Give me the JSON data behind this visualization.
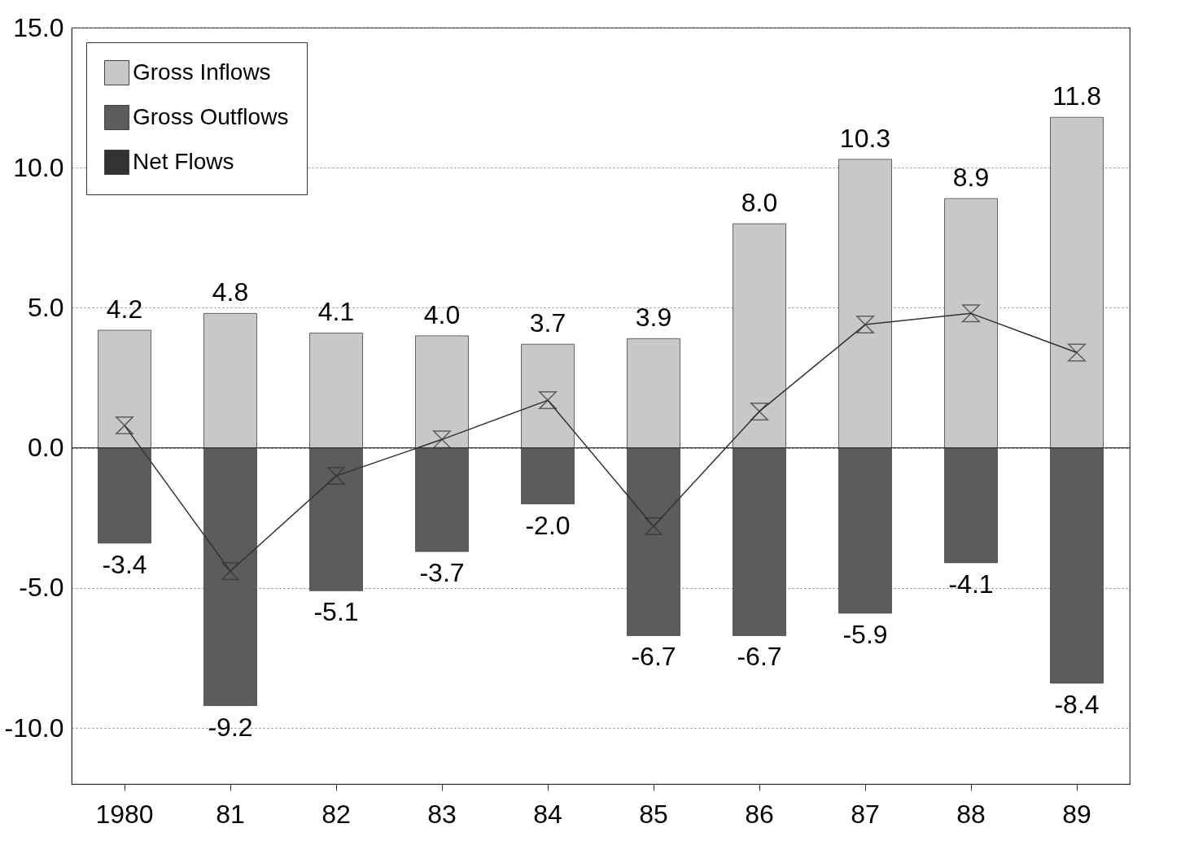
{
  "chart_data": {
    "type": "bar",
    "stacked": true,
    "categories": [
      "1980",
      "81",
      "82",
      "83",
      "84",
      "85",
      "86",
      "87",
      "88",
      "89"
    ],
    "series": [
      {
        "name": "Gross Inflows",
        "color": "#c8c8c8",
        "values": [
          4.2,
          4.8,
          4.1,
          4.0,
          3.7,
          3.9,
          8.0,
          10.3,
          8.9,
          11.8
        ],
        "value_labels": [
          "4.2",
          "4.8",
          "4.1",
          "4.0",
          "3.7",
          "3.9",
          "8.0",
          "10.3",
          "8.9",
          "11.8"
        ]
      },
      {
        "name": "Gross Outflows",
        "color": "#5c5c5c",
        "values": [
          -3.4,
          -9.2,
          -5.1,
          -3.7,
          -2.0,
          -6.7,
          -6.7,
          -5.9,
          -4.1,
          -8.4
        ],
        "value_labels": [
          "-3.4",
          "-9.2",
          "-5.1",
          "-3.7",
          "-2.0",
          "-6.7",
          "-6.7",
          "-5.9",
          "-4.1",
          "-8.4"
        ]
      },
      {
        "name": "Net Flows",
        "type": "line",
        "color": "#333333",
        "marker": "diamond",
        "values": [
          0.8,
          -4.4,
          -1.0,
          0.3,
          1.7,
          -2.8,
          1.3,
          4.4,
          4.8,
          3.4
        ]
      }
    ],
    "ylim": [
      -12,
      15
    ],
    "yticks": [
      {
        "value": -10,
        "label": "-10.0"
      },
      {
        "value": -5,
        "label": "-5.0"
      },
      {
        "value": 0,
        "label": "0.0"
      },
      {
        "value": 5,
        "label": "5.0"
      },
      {
        "value": 10,
        "label": "10.0"
      },
      {
        "value": 15,
        "label": "15.0"
      }
    ],
    "ref_lines": [
      {
        "axis": "y",
        "value": 0,
        "color": "#333333"
      }
    ],
    "grid": "y",
    "legend": "top left"
  }
}
